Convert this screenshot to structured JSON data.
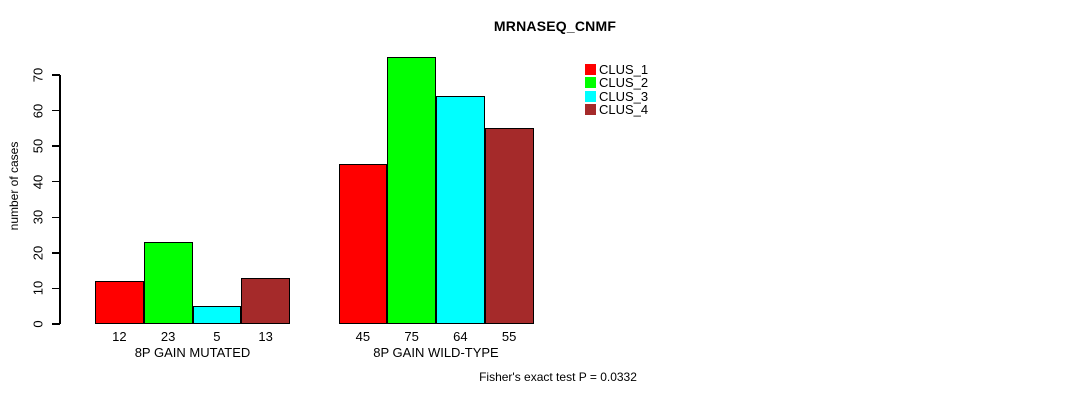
{
  "chart_data": {
    "type": "bar",
    "title": "MRNASEQ_CNMF",
    "ylabel": "number of cases",
    "xlabel": "",
    "subtitle": "Fisher's exact test P = 0.0332",
    "categories": [
      "8P GAIN MUTATED",
      "8P GAIN WILD-TYPE"
    ],
    "series": [
      {
        "name": "CLUS_1",
        "color": "#FF0000",
        "values": [
          12,
          45
        ]
      },
      {
        "name": "CLUS_2",
        "color": "#00FF00",
        "values": [
          23,
          75
        ]
      },
      {
        "name": "CLUS_3",
        "color": "#00FFFF",
        "values": [
          5,
          64
        ]
      },
      {
        "name": "CLUS_4",
        "color": "#A52A2A",
        "values": [
          13,
          55
        ]
      }
    ],
    "bar_value_labels": [
      [
        "12",
        "23",
        "5",
        "13"
      ],
      [
        "45",
        "75",
        "64",
        "55"
      ]
    ],
    "yticks": [
      0,
      10,
      20,
      30,
      40,
      50,
      60,
      70
    ],
    "ylim": [
      0,
      70
    ],
    "grid": false,
    "legend_position": "right",
    "bar_border_color": "#000000",
    "background_color": "#FFFFFF",
    "text_color": "#000000"
  }
}
